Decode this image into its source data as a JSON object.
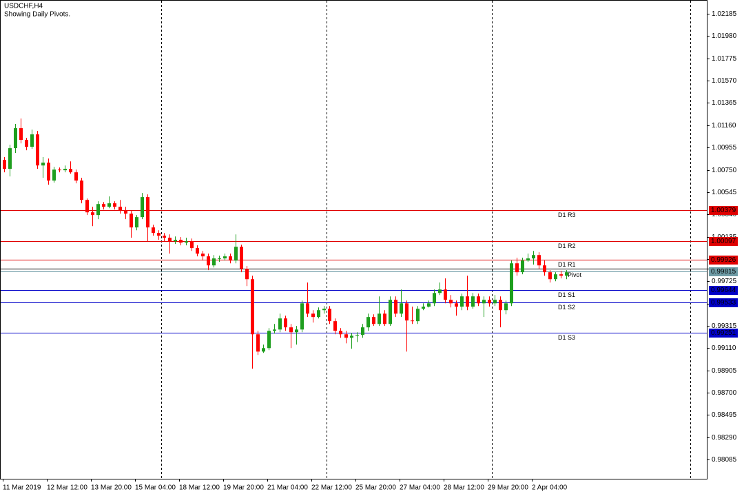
{
  "chart_data": {
    "type": "candlestick",
    "title": "USDCHF,H4",
    "subtitle": "Showing Daily Pivots.",
    "categories": [
      "11 Mar 2019",
      null,
      null,
      null,
      null,
      null,
      null,
      null,
      "12 Mar 12:00",
      null,
      null,
      null,
      null,
      null,
      null,
      null,
      "13 Mar 20:00",
      null,
      null,
      null,
      null,
      null,
      null,
      null,
      "15 Mar 04:00",
      null,
      null,
      null,
      null,
      null,
      null,
      null,
      "18 Mar 12:00",
      null,
      null,
      null,
      null,
      null,
      null,
      null,
      "19 Mar 20:00",
      null,
      null,
      null,
      null,
      null,
      null,
      null,
      "21 Mar 04:00",
      null,
      null,
      null,
      null,
      null,
      null,
      null,
      "22 Mar 12:00",
      null,
      null,
      null,
      null,
      null,
      null,
      null,
      "25 Mar 20:00",
      null,
      null,
      null,
      null,
      null,
      null,
      null,
      "27 Mar 04:00",
      null,
      null,
      null,
      null,
      null,
      null,
      null,
      "28 Mar 12:00",
      null,
      null,
      null,
      null,
      null,
      null,
      null,
      "29 Mar 20:00",
      null,
      null,
      null,
      null,
      null,
      null,
      null,
      "2 Apr 04:00",
      null,
      null,
      null,
      null,
      null,
      null
    ],
    "open": [
      1.00841,
      1.00759,
      1.00949,
      1.01133,
      1.01025,
      1.00962,
      1.01076,
      1.0079,
      1.00816,
      1.00651,
      1.00752,
      1.00746,
      1.00759,
      1.00727,
      1.00651,
      1.00473,
      1.00359,
      1.00334,
      1.00435,
      1.0041,
      1.00442,
      1.0041,
      1.00378,
      1.00347,
      1.0022,
      1.00315,
      1.00499,
      1.0022,
      1.00169,
      1.00144,
      1.00125,
      1.00093,
      1.00106,
      1.0008,
      1.00093,
      1.0003,
      0.99979,
      0.99954,
      0.99871,
      0.99935,
      0.99935,
      0.99954,
      0.99915,
      1.00042,
      0.99839,
      0.99744,
      0.99237,
      0.99078,
      0.9911,
      0.99269,
      0.99281,
      0.99383,
      0.99301,
      0.99256,
      0.99281,
      0.99522,
      0.99427,
      0.99396,
      0.99459,
      0.99472,
      0.99358,
      0.99269,
      0.99237,
      0.99205,
      0.99224,
      0.99231,
      0.99301,
      0.99396,
      0.99332,
      0.99427,
      0.99332,
      0.99554,
      0.99427,
      0.99522,
      0.99364,
      0.99358,
      0.99472,
      0.99491,
      0.99522,
      0.99617,
      0.99649,
      0.99554,
      0.99522,
      0.99491,
      0.99586,
      0.99491,
      0.99586,
      0.99522,
      0.99554,
      0.99522,
      0.99554,
      0.99459,
      0.99522,
      0.9989,
      0.99808,
      0.99915,
      0.99935,
      0.99966,
      0.99871,
      0.99808,
      0.99744,
      0.99789,
      0.99776
    ],
    "high": [
      1.00867,
      1.00981,
      1.01171,
      1.01222,
      1.01044,
      1.0112,
      1.01107,
      1.00867,
      1.00854,
      1.00778,
      1.00771,
      1.0079,
      1.00828,
      1.00752,
      1.00676,
      1.00486,
      1.0041,
      1.00461,
      1.00454,
      1.00505,
      1.00461,
      1.00473,
      1.0041,
      1.00372,
      1.00334,
      1.00537,
      1.00524,
      1.00245,
      1.00194,
      1.00169,
      1.00156,
      1.00137,
      1.00131,
      1.00125,
      1.00118,
      1.00055,
      1.00004,
      0.99979,
      0.99966,
      0.9996,
      0.99979,
      0.99979,
      1.00156,
      1.00061,
      0.99865,
      0.99776,
      0.99269,
      0.99142,
      0.99294,
      0.99332,
      0.99427,
      0.99408,
      0.99332,
      0.99314,
      0.99548,
      0.99713,
      0.99459,
      0.99484,
      0.99497,
      0.99497,
      0.99383,
      0.99294,
      0.99269,
      0.9925,
      0.99256,
      0.99332,
      0.99427,
      0.99421,
      0.99586,
      0.99459,
      0.99586,
      0.99586,
      0.99649,
      0.99548,
      0.99491,
      0.99497,
      0.99522,
      0.99548,
      0.99649,
      0.99713,
      0.99751,
      0.99598,
      0.99548,
      0.99611,
      0.99776,
      0.99617,
      0.99611,
      0.99586,
      0.99586,
      0.99598,
      0.99586,
      0.99548,
      0.99915,
      0.99941,
      0.99941,
      0.99979,
      1.00004,
      0.99992,
      0.99915,
      0.99827,
      0.99808,
      0.99821,
      0.99827
    ],
    "low": [
      1.00727,
      1.00689,
      1.00905,
      1.00993,
      1.0093,
      1.00943,
      1.00759,
      1.00676,
      1.00613,
      1.00632,
      1.00727,
      1.00727,
      1.00714,
      1.00626,
      1.00442,
      1.00334,
      1.00232,
      1.00296,
      1.00385,
      1.00397,
      1.00385,
      1.00347,
      1.00296,
      1.00125,
      1.00194,
      1.00296,
      1.00093,
      1.00144,
      1.00106,
      1.00093,
      0.99979,
      1.00068,
      1.00055,
      1.00055,
      1.00004,
      0.99954,
      0.99915,
      0.99827,
      0.99852,
      0.99903,
      0.99915,
      0.9989,
      0.9989,
      0.99808,
      0.99681,
      0.9892,
      0.99047,
      0.99066,
      0.99091,
      0.99243,
      0.99256,
      0.99269,
      0.9911,
      0.99142,
      0.99256,
      0.99396,
      0.99345,
      0.99383,
      0.99427,
      0.99332,
      0.99237,
      0.99205,
      0.99154,
      0.99104,
      0.99166,
      0.99205,
      0.99269,
      0.99314,
      0.99314,
      0.99314,
      0.99314,
      0.99396,
      0.99396,
      0.99078,
      0.99332,
      0.99332,
      0.99459,
      0.99484,
      0.99497,
      0.99598,
      0.99522,
      0.99484,
      0.99408,
      0.99459,
      0.99459,
      0.99472,
      0.99497,
      0.99396,
      0.99491,
      0.99497,
      0.99301,
      0.99421,
      0.99497,
      0.99776,
      0.99789,
      0.99903,
      0.99878,
      0.99839,
      0.99776,
      0.99713,
      0.99725,
      0.99751,
      0.99744
    ],
    "close": [
      1.00759,
      1.00949,
      1.01133,
      1.01025,
      1.00962,
      1.01076,
      1.0079,
      1.00816,
      1.00651,
      1.00752,
      1.00746,
      1.00759,
      1.00727,
      1.00651,
      1.00473,
      1.00359,
      1.00334,
      1.00435,
      1.0041,
      1.00442,
      1.0041,
      1.00378,
      1.00347,
      1.0022,
      1.00315,
      1.00499,
      1.0022,
      1.00169,
      1.00144,
      1.00125,
      1.00093,
      1.00106,
      1.0008,
      1.00093,
      1.0003,
      0.99979,
      0.99954,
      0.99871,
      0.99935,
      0.99935,
      0.99954,
      0.99915,
      1.00042,
      0.99839,
      0.99744,
      0.99237,
      0.99078,
      0.9911,
      0.99269,
      0.99281,
      0.99383,
      0.99301,
      0.99256,
      0.99281,
      0.99522,
      0.99427,
      0.99396,
      0.99459,
      0.99472,
      0.99358,
      0.99269,
      0.99237,
      0.99205,
      0.99224,
      0.99231,
      0.99301,
      0.99396,
      0.99332,
      0.99427,
      0.99332,
      0.99554,
      0.99427,
      0.99522,
      0.99364,
      0.99358,
      0.99472,
      0.99491,
      0.99522,
      0.99617,
      0.99649,
      0.99554,
      0.99522,
      0.99491,
      0.99586,
      0.99491,
      0.99586,
      0.99522,
      0.99554,
      0.99522,
      0.99554,
      0.99459,
      0.99522,
      0.9989,
      0.99808,
      0.99915,
      0.99935,
      0.99966,
      0.99871,
      0.99808,
      0.99744,
      0.99789,
      0.99776,
      0.99808
    ],
    "up_color": "#1e9e1e",
    "down_color": "#ff0000",
    "ylim": [
      0.97908,
      1.02312
    ],
    "yticks": [
      1.02185,
      {
        "value": 1.0198,
        "label": "1.01980"
      },
      1.01775,
      {
        "value": 1.0157,
        "label": "1.01570"
      },
      1.01365,
      {
        "value": 1.0116,
        "label": "1.01160"
      },
      1.00955,
      {
        "value": 1.0075,
        "label": "1.00750"
      },
      1.00545,
      {
        "value": 1.0034,
        "label": "1.00340"
      },
      1.00135,
      {
        "value": 0.9993,
        "label": "0.99930"
      },
      0.99725,
      {
        "value": 0.9952,
        "label": "0.99520"
      },
      0.99315,
      {
        "value": 0.9911,
        "label": "0.99110"
      },
      0.98905,
      {
        "value": 0.987,
        "label": "0.98700"
      },
      0.98495,
      {
        "value": 0.9829,
        "label": "0.98290"
      },
      0.98085
    ],
    "pivots": [
      {
        "name": "D1 R3",
        "value": 1.00379,
        "color": "#e00000"
      },
      {
        "name": "D1 R2",
        "value": 1.00097,
        "color": "#e00000"
      },
      {
        "name": "D1 R1",
        "value": 0.99926,
        "color": "#e00000"
      },
      {
        "name": "Pivot",
        "value": 0.99815,
        "color": "#6f9ca6"
      },
      {
        "name": "D1 S1",
        "value": 0.99644,
        "color": "#0000c8"
      },
      {
        "name": "D1 S2",
        "value": 0.99533,
        "color": "#0000c8"
      },
      {
        "name": "D1 S3",
        "value": 0.99251,
        "color": "#0000c8"
      }
    ],
    "bid": 0.99839
  }
}
